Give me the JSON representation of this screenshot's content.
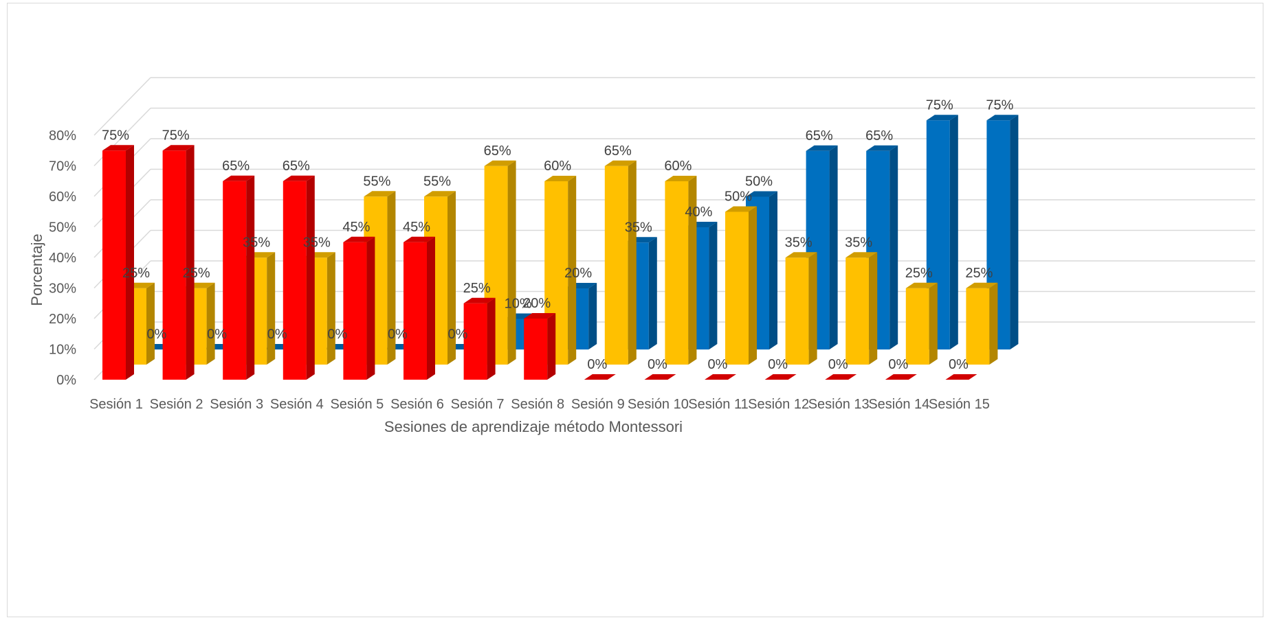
{
  "chart_data": {
    "type": "bar",
    "variant": "3d-column",
    "title": "",
    "xlabel": "Sesiones de aprendizaje método Montessori",
    "ylabel": "Porcentaje",
    "ylim": [
      0,
      0.8
    ],
    "ytick_labels": [
      "0%",
      "10%",
      "20%",
      "30%",
      "40%",
      "50%",
      "60%",
      "70%",
      "80%"
    ],
    "grid": true,
    "legend": "none",
    "categories": [
      "Sesión 1",
      "Sesión 2",
      "Sesión 3",
      "Sesión 4",
      "Sesión 5",
      "Sesión 6",
      "Sesión 7",
      "Sesión 8",
      "Sesión 9",
      "Sesión 10",
      "Sesión 11",
      "Sesión 12",
      "Sesión 13",
      "Sesión 14",
      "Sesión 15"
    ],
    "series": [
      {
        "color": "#ff0000",
        "values": [
          0.75,
          0.75,
          0.65,
          0.65,
          0.45,
          0.45,
          0.25,
          0.2,
          0,
          0,
          0,
          0,
          0,
          0,
          0
        ],
        "labels": [
          "75%",
          "75%",
          "65%",
          "65%",
          "45%",
          "45%",
          "25%",
          "20%",
          "0%",
          "0%",
          "0%",
          "0%",
          "0%",
          "0%",
          "0%"
        ]
      },
      {
        "color": "#ffc000",
        "values": [
          0.25,
          0.25,
          0.35,
          0.35,
          0.55,
          0.55,
          0.65,
          0.6,
          0.65,
          0.6,
          0.5,
          0.35,
          0.35,
          0.25,
          0.25
        ],
        "labels": [
          "25%",
          "25%",
          "35%",
          "35%",
          "55%",
          "55%",
          "65%",
          "60%",
          "65%",
          "60%",
          "50%",
          "35%",
          "35%",
          "25%",
          "25%"
        ]
      },
      {
        "color": "#0070c0",
        "values": [
          0,
          0,
          0,
          0,
          0,
          0,
          0.1,
          0.2,
          0.35,
          0.4,
          0.5,
          0.65,
          0.65,
          0.75,
          0.75
        ],
        "labels": [
          "0%",
          "0%",
          "0%",
          "0%",
          "0%",
          "0%",
          "10%",
          "20%",
          "35%",
          "40%",
          "50%",
          "65%",
          "65%",
          "75%",
          "75%"
        ]
      }
    ]
  }
}
